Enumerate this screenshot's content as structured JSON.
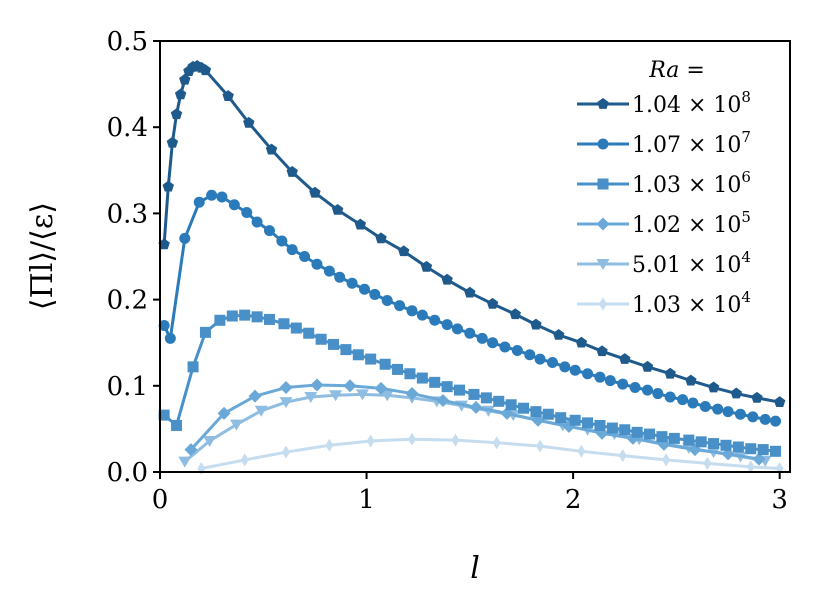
{
  "chart_data": {
    "type": "line",
    "xlabel": "l",
    "ylabel": "⟨Πl⟩/⟨ε⟩",
    "xlim": [
      0,
      3.05
    ],
    "ylim": [
      0,
      0.5
    ],
    "xticks": [
      "0",
      "1",
      "2",
      "3"
    ],
    "yticks": [
      "0.0",
      "0.1",
      "0.2",
      "0.3",
      "0.4",
      "0.5"
    ],
    "grid": false,
    "legend_position": "top-right",
    "legend_title": "Ra =",
    "series": [
      {
        "name": "1.04 × 10^8",
        "label_base": "1.04 × 10",
        "label_exp": "8",
        "marker": "pentagon",
        "color": "#1f5a8c",
        "x": [
          0.02,
          0.04,
          0.06,
          0.08,
          0.1,
          0.12,
          0.14,
          0.16,
          0.18,
          0.2,
          0.22,
          0.33,
          0.43,
          0.54,
          0.64,
          0.75,
          0.86,
          0.97,
          1.07,
          1.18,
          1.29,
          1.39,
          1.5,
          1.61,
          1.72,
          1.82,
          1.93,
          2.04,
          2.14,
          2.25,
          2.36,
          2.47,
          2.57,
          2.68,
          2.79,
          2.89,
          3.0
        ],
        "values": [
          0.264,
          0.331,
          0.382,
          0.415,
          0.438,
          0.455,
          0.465,
          0.47,
          0.471,
          0.469,
          0.466,
          0.436,
          0.405,
          0.374,
          0.348,
          0.324,
          0.304,
          0.287,
          0.271,
          0.256,
          0.238,
          0.223,
          0.208,
          0.195,
          0.183,
          0.171,
          0.159,
          0.15,
          0.14,
          0.131,
          0.122,
          0.114,
          0.106,
          0.098,
          0.091,
          0.086,
          0.081
        ]
      },
      {
        "name": "1.07 × 10^7",
        "label_base": "1.07 × 10",
        "label_exp": "7",
        "marker": "circle",
        "color": "#2b7bba",
        "x": [
          0.02,
          0.05,
          0.12,
          0.19,
          0.25,
          0.3,
          0.36,
          0.42,
          0.47,
          0.53,
          0.59,
          0.64,
          0.7,
          0.76,
          0.82,
          0.87,
          0.93,
          0.99,
          1.04,
          1.1,
          1.16,
          1.22,
          1.27,
          1.33,
          1.39,
          1.44,
          1.5,
          1.56,
          1.61,
          1.67,
          1.73,
          1.79,
          1.84,
          1.9,
          1.96,
          2.01,
          2.07,
          2.13,
          2.18,
          2.24,
          2.3,
          2.36,
          2.41,
          2.47,
          2.53,
          2.58,
          2.64,
          2.7,
          2.75,
          2.81,
          2.87,
          2.93,
          2.98
        ],
        "values": [
          0.17,
          0.155,
          0.271,
          0.313,
          0.321,
          0.319,
          0.31,
          0.301,
          0.29,
          0.28,
          0.268,
          0.258,
          0.25,
          0.241,
          0.233,
          0.226,
          0.219,
          0.212,
          0.206,
          0.199,
          0.193,
          0.187,
          0.182,
          0.176,
          0.171,
          0.166,
          0.161,
          0.155,
          0.15,
          0.145,
          0.141,
          0.136,
          0.131,
          0.127,
          0.122,
          0.118,
          0.114,
          0.11,
          0.106,
          0.102,
          0.098,
          0.095,
          0.091,
          0.087,
          0.084,
          0.08,
          0.076,
          0.073,
          0.07,
          0.067,
          0.064,
          0.061,
          0.059
        ]
      },
      {
        "name": "1.03 × 10^6",
        "label_base": "1.03 × 10",
        "label_exp": "6",
        "marker": "square",
        "color": "#4a90c8",
        "x": [
          0.02,
          0.08,
          0.16,
          0.22,
          0.29,
          0.35,
          0.41,
          0.47,
          0.53,
          0.6,
          0.66,
          0.72,
          0.78,
          0.84,
          0.9,
          0.96,
          1.02,
          1.09,
          1.15,
          1.21,
          1.27,
          1.33,
          1.39,
          1.45,
          1.52,
          1.58,
          1.64,
          1.7,
          1.76,
          1.82,
          1.88,
          1.94,
          2.01,
          2.07,
          2.13,
          2.19,
          2.25,
          2.31,
          2.37,
          2.43,
          2.49,
          2.56,
          2.62,
          2.68,
          2.74,
          2.8,
          2.86,
          2.92,
          2.98
        ],
        "values": [
          0.066,
          0.054,
          0.122,
          0.162,
          0.176,
          0.181,
          0.182,
          0.18,
          0.177,
          0.172,
          0.167,
          0.161,
          0.154,
          0.148,
          0.142,
          0.136,
          0.131,
          0.125,
          0.119,
          0.114,
          0.109,
          0.104,
          0.099,
          0.095,
          0.09,
          0.086,
          0.082,
          0.078,
          0.074,
          0.07,
          0.067,
          0.063,
          0.06,
          0.057,
          0.054,
          0.051,
          0.049,
          0.046,
          0.044,
          0.041,
          0.039,
          0.037,
          0.035,
          0.033,
          0.031,
          0.029,
          0.027,
          0.026,
          0.024
        ]
      },
      {
        "name": "1.02 × 10^5",
        "label_base": "1.02 × 10",
        "label_exp": "5",
        "marker": "diamond",
        "color": "#6aa8d8",
        "x": [
          0.15,
          0.31,
          0.46,
          0.61,
          0.76,
          0.92,
          1.07,
          1.22,
          1.37,
          1.53,
          1.68,
          1.83,
          1.98,
          2.14,
          2.29,
          2.44,
          2.59,
          2.75,
          2.9
        ],
        "values": [
          0.026,
          0.068,
          0.088,
          0.098,
          0.101,
          0.1,
          0.097,
          0.091,
          0.083,
          0.075,
          0.068,
          0.06,
          0.053,
          0.045,
          0.039,
          0.032,
          0.026,
          0.021,
          0.015
        ]
      },
      {
        "name": "5.01 × 10^4",
        "label_base": "5.01 × 10",
        "label_exp": "4",
        "marker": "triangle-down",
        "color": "#8fbde2",
        "x": [
          0.12,
          0.24,
          0.37,
          0.49,
          0.61,
          0.73,
          0.85,
          0.98,
          1.1,
          1.22,
          1.34,
          1.46,
          1.59,
          1.71,
          1.83,
          1.95,
          2.07,
          2.2,
          2.32,
          2.44,
          2.56,
          2.68,
          2.81,
          2.93
        ],
        "values": [
          0.012,
          0.036,
          0.055,
          0.071,
          0.081,
          0.087,
          0.089,
          0.09,
          0.089,
          0.086,
          0.082,
          0.077,
          0.071,
          0.066,
          0.06,
          0.054,
          0.049,
          0.044,
          0.038,
          0.033,
          0.028,
          0.023,
          0.018,
          0.013
        ]
      },
      {
        "name": "1.03 × 10^4",
        "label_base": "1.03 × 10",
        "label_exp": "4",
        "marker": "thin-diamond",
        "color": "#c6dcef",
        "x": [
          0.2,
          0.41,
          0.61,
          0.82,
          1.02,
          1.22,
          1.43,
          1.63,
          1.84,
          2.04,
          2.24,
          2.45,
          2.65,
          2.86,
          3.0
        ],
        "values": [
          0.004,
          0.014,
          0.023,
          0.031,
          0.036,
          0.038,
          0.037,
          0.034,
          0.03,
          0.024,
          0.019,
          0.014,
          0.01,
          0.006,
          0.004
        ]
      }
    ]
  }
}
